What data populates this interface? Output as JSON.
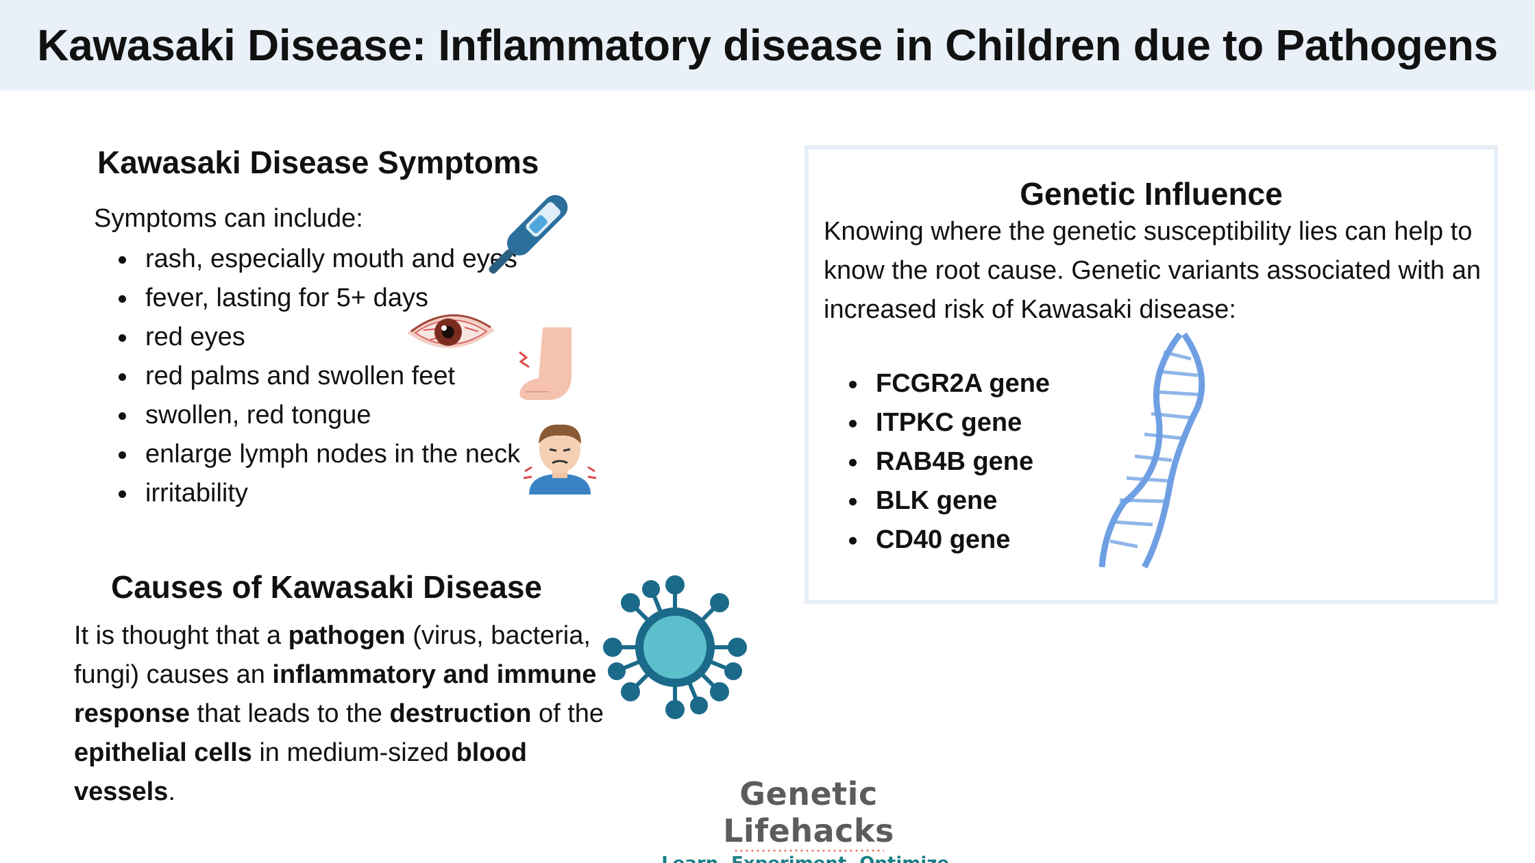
{
  "title": "Kawasaki Disease: Inflammatory disease in Children due to Pathogens",
  "symptoms": {
    "heading": "Kawasaki Disease Symptoms",
    "intro": "Symptoms can include:",
    "items": [
      "rash, especially mouth and eyes",
      "fever, lasting for 5+ days",
      "red eyes",
      "red palms and swollen feet",
      "swollen, red tongue",
      "enlarge lymph nodes in the neck",
      "irritability"
    ]
  },
  "causes": {
    "heading": "Causes of Kawasaki Disease",
    "p1": "It is thought that a ",
    "b1": "pathogen",
    "p2": " (virus, bacteria, fungi) causes an ",
    "b2": "inflammatory and immune response",
    "p3": " that leads to the ",
    "b3": "destruction",
    "p4": " of the ",
    "b4": "epithelial cells",
    "p5": " in medium-sized ",
    "b5": "blood vessels",
    "p6": "."
  },
  "genetic": {
    "heading": "Genetic Influence",
    "text": "Knowing where the genetic susceptibility lies can help to know the root cause. Genetic variants associated with an increased risk of Kawasaki disease:",
    "genes": [
      "FCGR2A gene",
      "ITPKC gene",
      "RAB4B gene",
      "BLK gene",
      "CD40 gene"
    ]
  },
  "logo": {
    "name": "Genetic Lifehacks",
    "tagline": "Learn. Experiment. Optimize."
  },
  "icons": {
    "thermometer": "thermometer-icon",
    "eye": "red-eye-icon",
    "foot": "swollen-foot-icon",
    "child": "sick-child-icon",
    "virus": "virus-icon",
    "dna": "dna-helix-icon"
  },
  "colors": {
    "title_bg": "#e9f0f8",
    "virus": "#1b6a8a",
    "virus_core": "#5bbfcc",
    "dna": "#7aa7e6",
    "logo_tag": "#1a7f86"
  }
}
